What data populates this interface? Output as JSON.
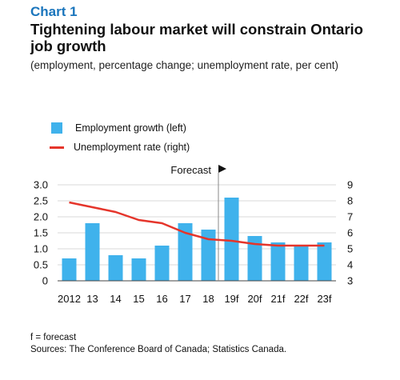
{
  "header": {
    "chart_number": "Chart 1",
    "title": "Tightening labour market will constrain Ontario job growth",
    "subtitle": "(employment, percentage change; unemployment rate, per cent)"
  },
  "colors": {
    "bar": "#3fb2ec",
    "line": "#e5352b",
    "axis": "#444444",
    "grid": "#cccccc"
  },
  "chart_data": {
    "type": "bar",
    "categories": [
      "2012",
      "13",
      "14",
      "15",
      "16",
      "17",
      "18",
      "19f",
      "20f",
      "21f",
      "22f",
      "23f"
    ],
    "series": [
      {
        "name": "Employment growth (left)",
        "type": "bar",
        "axis": "left",
        "values": [
          0.7,
          1.8,
          0.8,
          0.7,
          1.1,
          1.8,
          1.6,
          2.6,
          1.4,
          1.2,
          1.1,
          1.2
        ]
      },
      {
        "name": "Unemployment rate (right)",
        "type": "line",
        "axis": "right",
        "values": [
          7.9,
          7.6,
          7.3,
          6.8,
          6.6,
          6.0,
          5.6,
          5.5,
          5.3,
          5.2,
          5.2,
          5.2
        ]
      }
    ],
    "y_left": {
      "min": 0,
      "max": 3.0,
      "ticks": [
        "0",
        "0.5",
        "1.0",
        "1.5",
        "2.0",
        "2.5",
        "3.0"
      ]
    },
    "y_right": {
      "min": 3,
      "max": 9,
      "ticks": [
        "3",
        "4",
        "5",
        "6",
        "7",
        "8",
        "9"
      ]
    },
    "forecast_label": "Forecast",
    "forecast_start_category": "19f",
    "grid": true,
    "legend_position": "top-left"
  },
  "footer": {
    "note": "f = forecast",
    "sources": "Sources: The Conference Board of Canada; Statistics Canada."
  }
}
